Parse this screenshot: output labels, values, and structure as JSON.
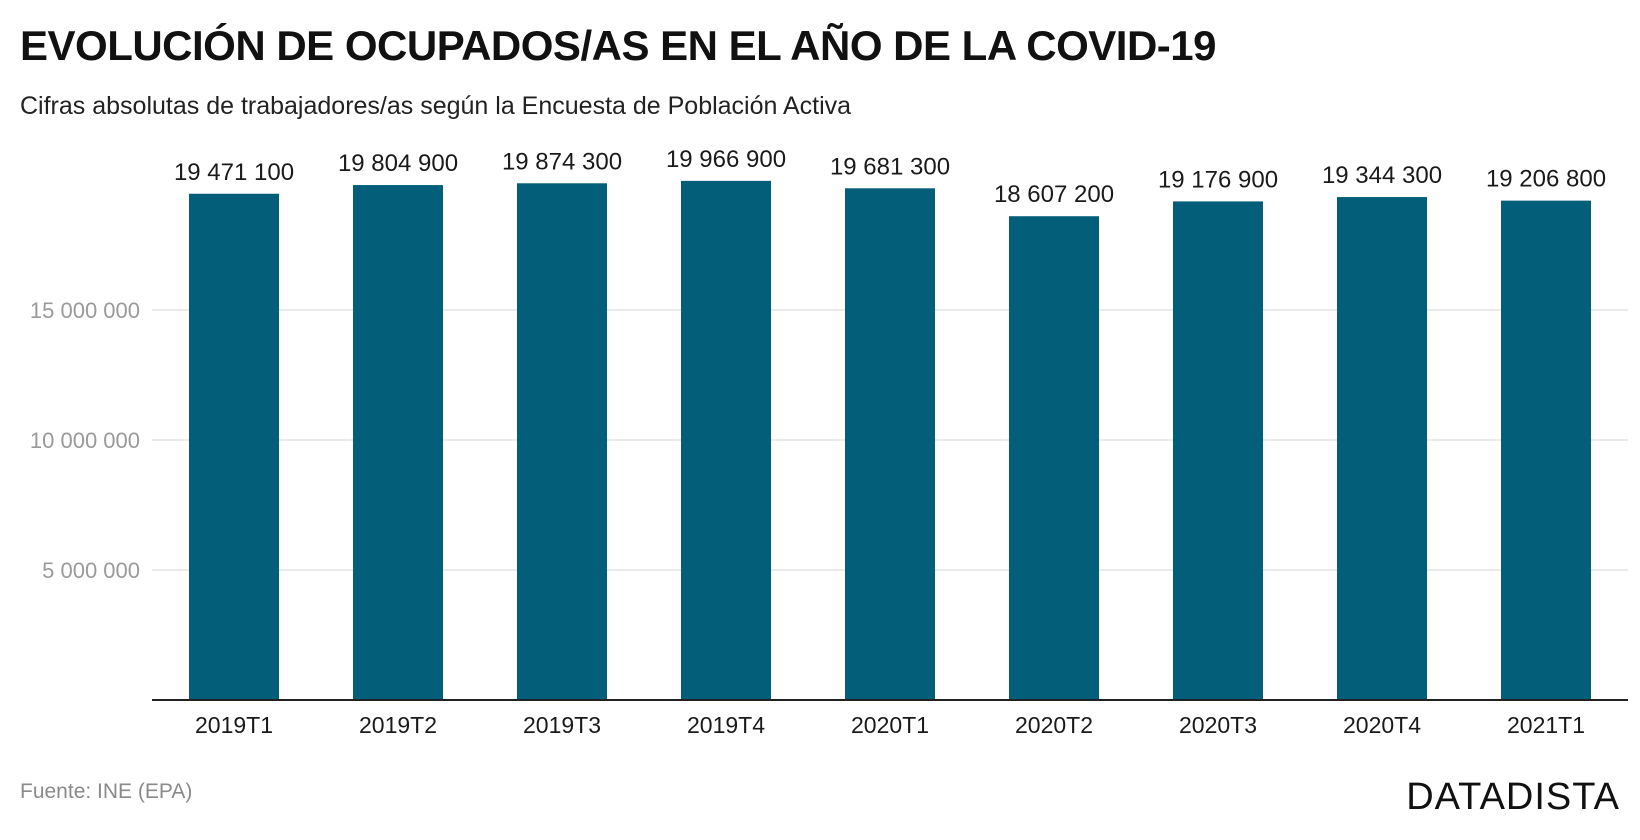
{
  "title": "EVOLUCIÓN DE OCUPADOS/AS EN EL AÑO DE LA COVID-19",
  "subtitle": "Cifras absolutas de trabajadores/as según la Encuesta de Población Activa",
  "source": "Fuente: INE (EPA)",
  "brand": "DATADISTA",
  "chart_data": {
    "type": "bar",
    "categories": [
      "2019T1",
      "2019T2",
      "2019T3",
      "2019T4",
      "2020T1",
      "2020T2",
      "2020T3",
      "2020T4",
      "2021T1"
    ],
    "values": [
      19471100,
      19804900,
      19874300,
      19966900,
      19681300,
      18607200,
      19176900,
      19344300,
      19206800
    ],
    "value_labels": [
      "19 471 100",
      "19 804 900",
      "19 874 300",
      "19 966 900",
      "19 681 300",
      "18 607 200",
      "19 176 900",
      "19 344 300",
      "19 206 800"
    ],
    "yticks": [
      5000000,
      10000000,
      15000000
    ],
    "ytick_labels": [
      "5 000 000",
      "10 000 000",
      "15 000 000"
    ],
    "ylim": [
      0,
      20000000
    ],
    "grid": true,
    "bar_color": "#035f79"
  }
}
